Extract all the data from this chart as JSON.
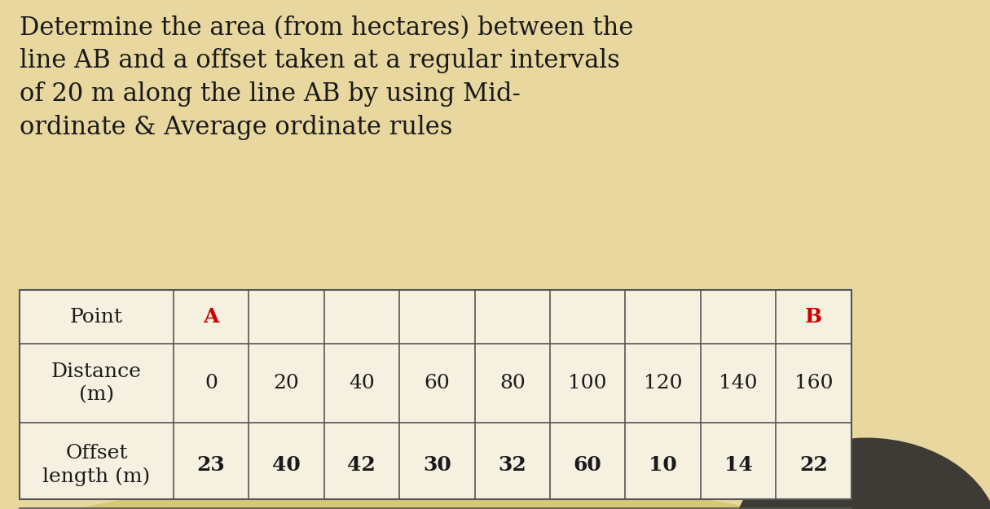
{
  "title_lines": [
    "Determine the area (from hectares) between the",
    "line AB and a offset taken at a regular intervals",
    "of 20 m along the line AB by using Mid-",
    "ordinate & Average ordinate rules"
  ],
  "col1_label_text": "A",
  "col1_label_color": "#cc0000",
  "last_col_label_text": "B",
  "last_col_label_color": "#cc0000",
  "distances": [
    "0",
    "20",
    "40",
    "60",
    "80",
    "100",
    "120",
    "140",
    "160"
  ],
  "offsets": [
    "23",
    "40",
    "42",
    "30",
    "32",
    "60",
    "10",
    "14",
    "22"
  ],
  "bg_color": "#e8d8a0",
  "table_bg": "#f5f0e0",
  "title_color": "#1a1a1a",
  "text_color": "#1a1a1a",
  "title_fontsize": 22,
  "body_fontsize": 18,
  "table_border_color": "#555555"
}
